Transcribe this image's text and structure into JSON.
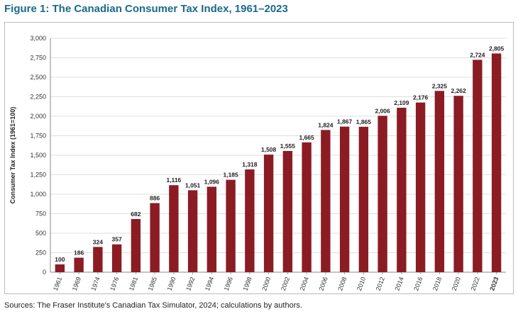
{
  "title": "Figure 1: The Canadian Consumer Tax Index, 1961–2023",
  "source": "Sources: The Fraser Institute's Canadian Tax Simulator, 2024; calculations by authors.",
  "colors": {
    "bar": "#8b1c24",
    "title": "#1a6a8c",
    "grid": "#d4d4d4"
  },
  "chart_data": {
    "type": "bar",
    "categories": [
      "1961",
      "1969",
      "1974",
      "1976",
      "1981",
      "1985",
      "1990",
      "1992",
      "1994",
      "1996",
      "1998",
      "2000",
      "2002",
      "2004",
      "2006",
      "2008",
      "2010",
      "2012",
      "2014",
      "2016",
      "2018",
      "2020",
      "2022",
      "2023"
    ],
    "values": [
      100,
      186,
      324,
      357,
      682,
      886,
      1116,
      1051,
      1096,
      1185,
      1318,
      1508,
      1555,
      1665,
      1824,
      1867,
      1865,
      2006,
      2109,
      2176,
      2325,
      2262,
      2724,
      2805
    ],
    "data_labels": [
      "100",
      "186",
      "324",
      "357",
      "682",
      "886",
      "1,116",
      "1,051",
      "1,096",
      "1,185",
      "1,318",
      "1,508",
      "1,555",
      "1,665",
      "1,824",
      "1,867",
      "1,865",
      "2,006",
      "2,109",
      "2,176",
      "2,325",
      "2,262",
      "2,724",
      "2,805"
    ],
    "xlabel": "",
    "ylabel": "Consumer Tax Index (1961=100)",
    "ylim": [
      0,
      3000
    ],
    "yticks": [
      0,
      250,
      500,
      750,
      1000,
      1250,
      1500,
      1750,
      2000,
      2250,
      2500,
      2750,
      3000
    ],
    "ytick_labels": [
      "0",
      "250",
      "500",
      "750",
      "1,000",
      "1,250",
      "1,500",
      "1,750",
      "2,000",
      "2,250",
      "2,500",
      "2,750",
      "3,000"
    ],
    "grid": true,
    "legend": false
  }
}
